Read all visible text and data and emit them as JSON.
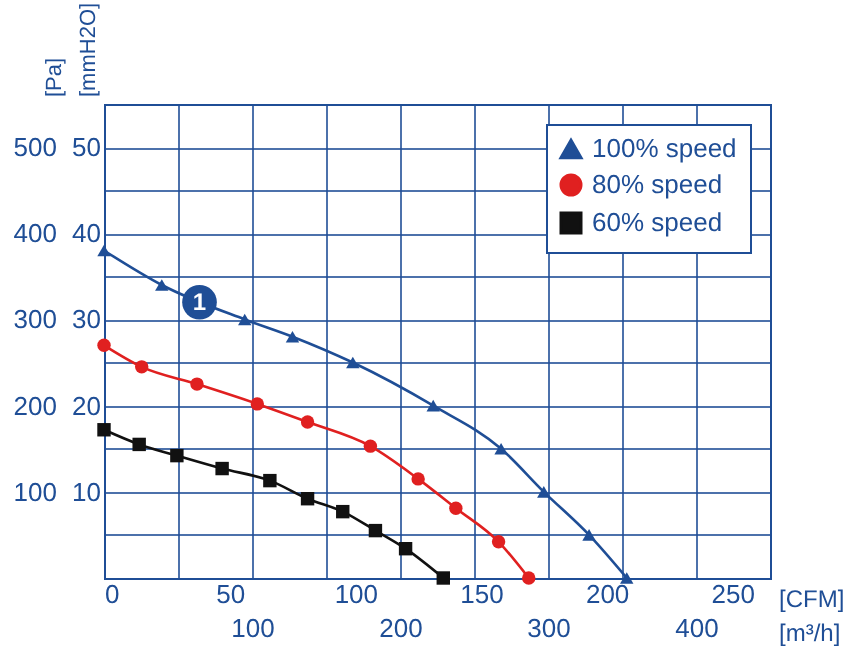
{
  "chart_data": {
    "type": "line",
    "xlabel": "[CFM]",
    "ylabel": "[Pa]",
    "x2label": "[m³/h]",
    "y2label": "[mmH2O]",
    "xlim": [
      0,
      265
    ],
    "xticks": [
      0,
      50,
      100,
      150,
      200,
      250
    ],
    "x2lim": [
      0,
      450
    ],
    "x2ticks": [
      {
        "value": 0,
        "label": null
      },
      {
        "value": 50,
        "label": null
      },
      100,
      {
        "value": 150,
        "label": null
      },
      200,
      {
        "value": 250,
        "label": null
      },
      300,
      {
        "value": 350,
        "label": null
      },
      400
    ],
    "ylim": [
      0,
      550
    ],
    "yticks": [
      {
        "value": 50,
        "label": null
      },
      100,
      {
        "value": 150,
        "label": null
      },
      200,
      {
        "value": 250,
        "label": null
      },
      300,
      {
        "value": 350,
        "label": null
      },
      400,
      {
        "value": 450,
        "label": null
      },
      500
    ],
    "y2lim": [
      0,
      55
    ],
    "y2ticks": [
      10,
      20,
      30,
      40,
      50
    ],
    "grid": true,
    "legend": "top right",
    "line_style": "solid",
    "annotations": [
      {
        "text": "1",
        "x": 38,
        "y": 320
      }
    ],
    "series": [
      {
        "name": "100% speed",
        "color": "#1f4e96",
        "marker": "triangle",
        "x": [
          0,
          23,
          56,
          75,
          99,
          131,
          158,
          175,
          193,
          208
        ],
        "values": [
          380,
          340,
          300,
          280,
          250,
          200,
          150,
          100,
          50,
          0
        ]
      },
      {
        "name": "80% speed",
        "color": "#e02020",
        "marker": "circle",
        "x": [
          0,
          15,
          37,
          61,
          81,
          106,
          125,
          140,
          157,
          169
        ],
        "values": [
          270,
          245,
          225,
          202,
          181,
          153,
          115,
          81,
          42,
          0
        ]
      },
      {
        "name": "60% speed",
        "color": "#111111",
        "marker": "square",
        "x": [
          0,
          14,
          29,
          47,
          66,
          81,
          95,
          108,
          120,
          135
        ],
        "values": [
          172,
          155,
          142,
          127,
          113,
          92,
          77,
          55,
          34,
          0
        ]
      }
    ]
  }
}
